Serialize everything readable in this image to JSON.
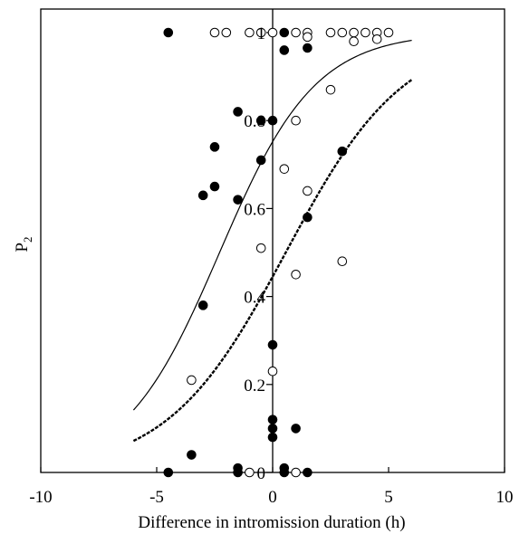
{
  "chart_data": {
    "type": "scatter",
    "title": "",
    "xlabel": "Difference in intromission duration (h)",
    "ylabel": "P",
    "ylabel_subscript": "2",
    "xlim": [
      -10,
      10
    ],
    "ylim": [
      0,
      1
    ],
    "x_ticks": [
      -10,
      -5,
      0,
      5,
      10
    ],
    "x_tick_labels": [
      "-10",
      "-5",
      "0",
      "5",
      "10"
    ],
    "y_ticks": [
      0,
      0.2,
      0.4,
      0.6,
      0.8,
      1
    ],
    "y_tick_labels": [
      "0",
      "0.2",
      "0.4",
      "0.6",
      "0.8",
      "1"
    ],
    "grid": false,
    "legend": false,
    "series": [
      {
        "marker": "filled-circle",
        "points": [
          [
            -4.5,
            1.0
          ],
          [
            0.5,
            1.0
          ],
          [
            0.5,
            0.96
          ],
          [
            1.5,
            0.965
          ],
          [
            -1.5,
            0.82
          ],
          [
            -0.5,
            0.8
          ],
          [
            0,
            0.8
          ],
          [
            -2.5,
            0.74
          ],
          [
            3.0,
            0.73
          ],
          [
            -0.5,
            0.71
          ],
          [
            -2.5,
            0.65
          ],
          [
            -3.0,
            0.63
          ],
          [
            -1.5,
            0.62
          ],
          [
            1.5,
            0.58
          ],
          [
            -3.0,
            0.38
          ],
          [
            0,
            0.29
          ],
          [
            0,
            0.12
          ],
          [
            0,
            0.1
          ],
          [
            1.0,
            0.1
          ],
          [
            0,
            0.08
          ],
          [
            -3.5,
            0.04
          ],
          [
            -1.5,
            0.01
          ],
          [
            0.5,
            0.01
          ],
          [
            -4.5,
            0.0
          ],
          [
            -1.5,
            0.0
          ],
          [
            0.5,
            0.0
          ],
          [
            1.5,
            0.0
          ]
        ]
      },
      {
        "marker": "open-circle",
        "points": [
          [
            -2.5,
            1.0
          ],
          [
            -2.0,
            1.0
          ],
          [
            -1.0,
            1.0
          ],
          [
            -0.5,
            1.0
          ],
          [
            0,
            1.0
          ],
          [
            1.0,
            1.0
          ],
          [
            1.5,
            1.0
          ],
          [
            1.5,
            0.99
          ],
          [
            2.5,
            1.0
          ],
          [
            3.0,
            1.0
          ],
          [
            3.5,
            1.0
          ],
          [
            4.0,
            1.0
          ],
          [
            4.5,
            1.0
          ],
          [
            5.0,
            1.0
          ],
          [
            3.5,
            0.98
          ],
          [
            4.5,
            0.985
          ],
          [
            2.5,
            0.87
          ],
          [
            1.0,
            0.8
          ],
          [
            0.5,
            0.69
          ],
          [
            1.5,
            0.64
          ],
          [
            -0.5,
            0.51
          ],
          [
            3.0,
            0.48
          ],
          [
            1.0,
            0.45
          ],
          [
            -3.5,
            0.21
          ],
          [
            0,
            0.23
          ],
          [
            -1.0,
            0.0
          ],
          [
            1.0,
            0.0
          ]
        ]
      }
    ],
    "curves": [
      {
        "style": "solid",
        "intercept": 1.11,
        "slope": 0.485,
        "x_range": [
          -6,
          6
        ]
      },
      {
        "style": "dashed",
        "intercept": -0.22,
        "slope": 0.39,
        "x_range": [
          -6,
          6
        ]
      }
    ]
  }
}
